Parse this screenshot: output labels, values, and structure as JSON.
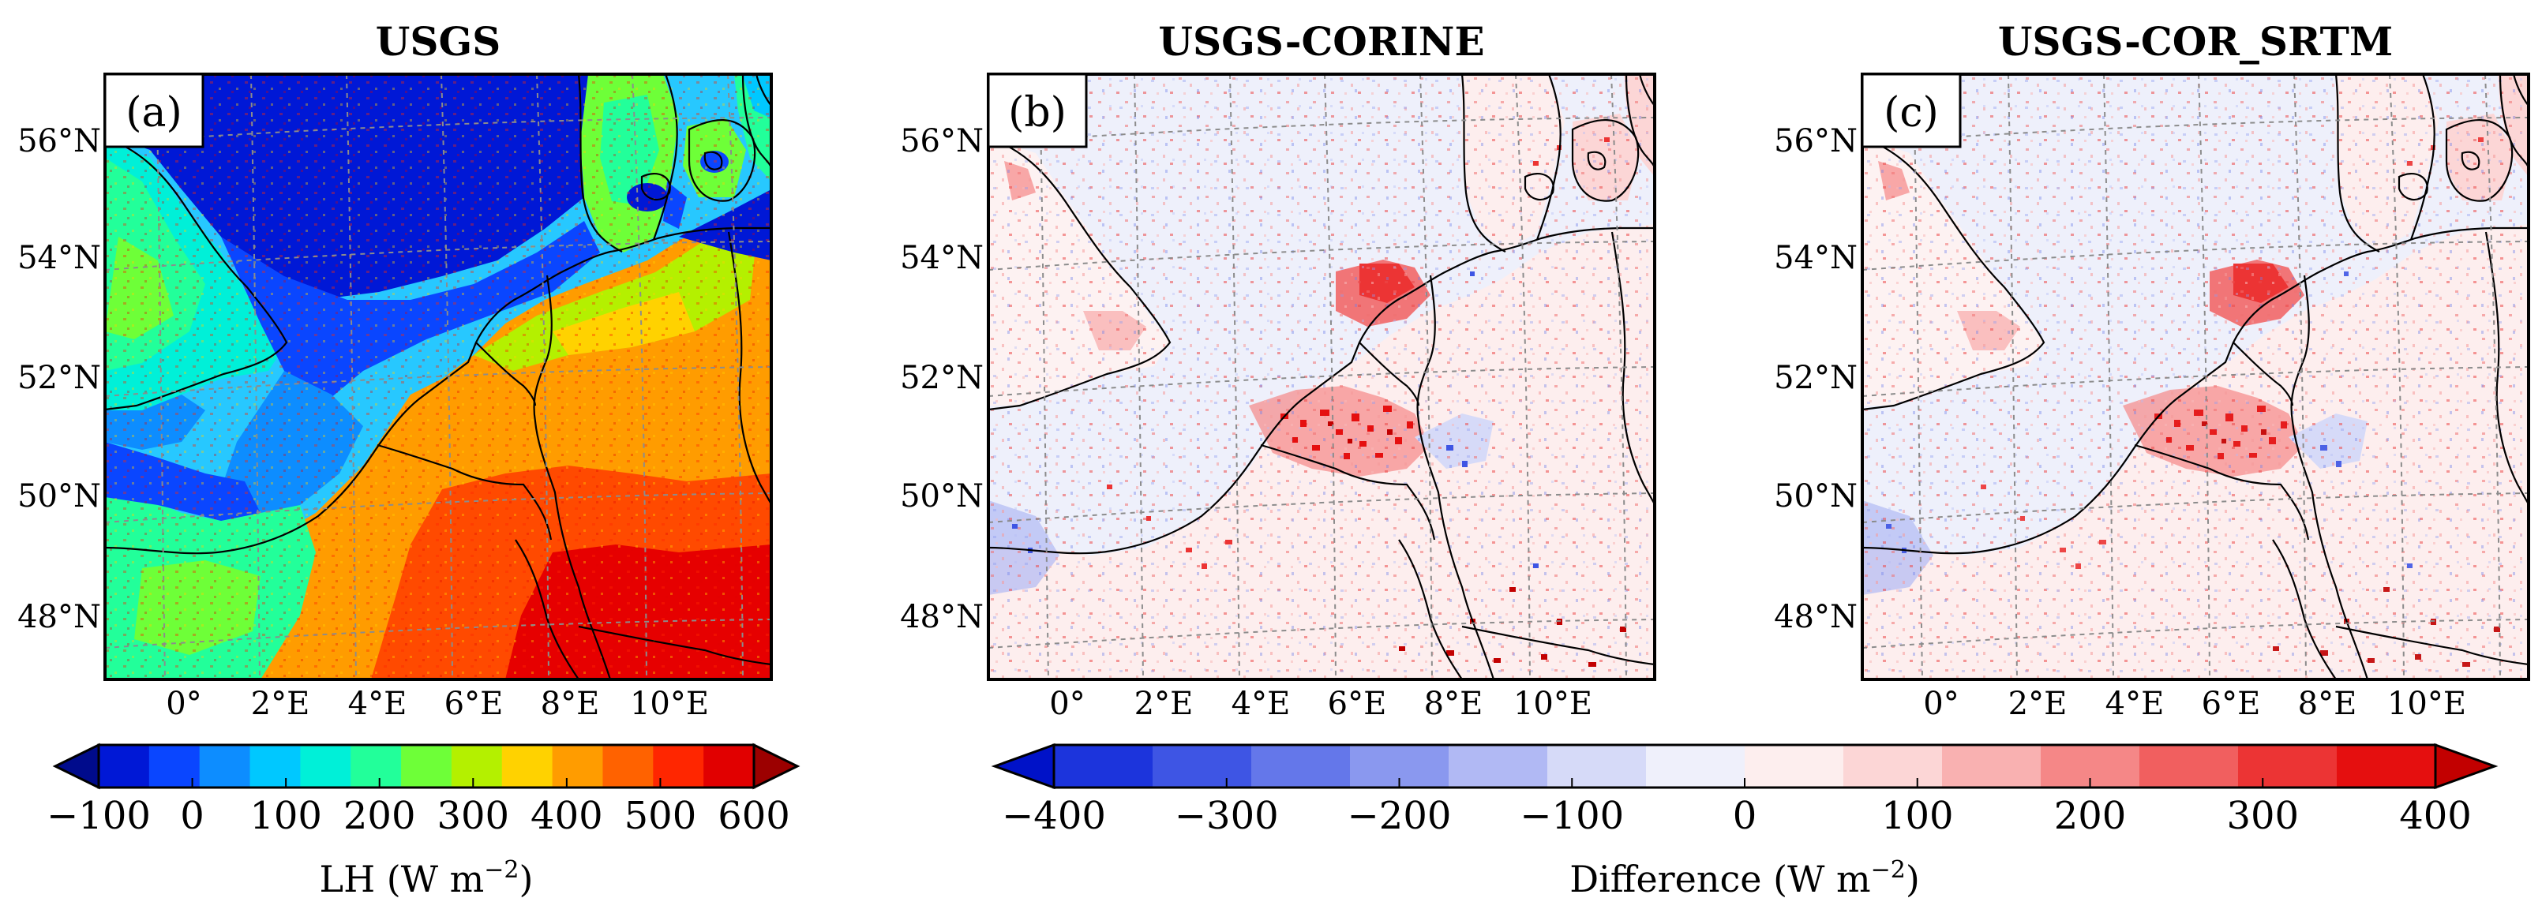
{
  "panels": [
    {
      "title": "USGS",
      "label": "(a)",
      "kind": "absolute"
    },
    {
      "title": "USGS-CORINE",
      "label": "(b)",
      "kind": "difference"
    },
    {
      "title": "USGS-COR_SRTM",
      "label": "(c)",
      "kind": "difference"
    }
  ],
  "lat_labels": [
    "56°N",
    "54°N",
    "52°N",
    "50°N",
    "48°N"
  ],
  "lon_labels": [
    "0°",
    "2°E",
    "4°E",
    "6°E",
    "8°E",
    "10°E"
  ],
  "colorbars": {
    "lh": {
      "ticks": [
        "−100",
        "0",
        "100",
        "200",
        "300",
        "400",
        "500",
        "600"
      ],
      "label_main": "LH (W m",
      "label_sup": "−2",
      "label_end": ")",
      "colors": [
        "#000b8c",
        "#0018d6",
        "#0a46ff",
        "#0d8dff",
        "#00c8ff",
        "#00f0d8",
        "#22ff9a",
        "#6eff38",
        "#b4f000",
        "#ffd200",
        "#ff9c00",
        "#ff6200",
        "#ff2600",
        "#e10000",
        "#9c0000"
      ]
    },
    "diff": {
      "ticks": [
        "−400",
        "−300",
        "−200",
        "−100",
        "0",
        "100",
        "200",
        "300",
        "400"
      ],
      "label_main": "Difference (W m",
      "label_sup": "−2",
      "label_end": ")",
      "colors": [
        "#0012c8",
        "#1c34dc",
        "#3e55e4",
        "#6477ea",
        "#8a98ef",
        "#b1b9f4",
        "#d6daf8",
        "#eff0fb",
        "#fdeeee",
        "#fcd6d6",
        "#f9b1b1",
        "#f58787",
        "#f15f5f",
        "#ec3434",
        "#e50f0f",
        "#c20000"
      ]
    }
  }
}
